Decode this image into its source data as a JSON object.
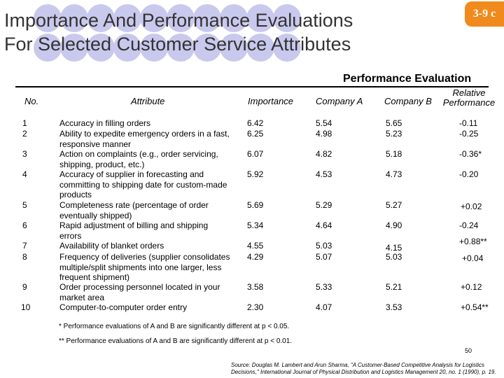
{
  "slide": {
    "title_lines": [
      "Importance And Performance Evaluations",
      "For Selected Customer Service Attributes"
    ],
    "number_tag": "3-9 c",
    "accent_color": "#f08a1c",
    "decor_color": "#c9c9ee"
  },
  "table": {
    "section_heading": "Performance Evaluation",
    "headers": {
      "no": "No.",
      "attribute": "Attribute",
      "importance": "Importance",
      "company_a": "Company A",
      "company_b": "Company B",
      "relative_line1": "Relative",
      "relative_line2": "Performance"
    },
    "rows": [
      {
        "no": "1",
        "attribute": "Accuracy in filling orders",
        "importance": "6.42",
        "a": "5.54",
        "b": "5.65",
        "rel": "-0.11"
      },
      {
        "no": "2",
        "attribute": "Ability to expedite emergency orders in a fast, responsive manner",
        "importance": "6.25",
        "a": "4.98",
        "b": "5.23",
        "rel": "-0.25"
      },
      {
        "no": "3",
        "attribute": "Action on complaints (e.g., order servicing, shipping, product, etc.)",
        "importance": "6.07",
        "a": "4.82",
        "b": "5.18",
        "rel": "-0.36*"
      },
      {
        "no": "4",
        "attribute": "Accuracy of supplier in forecasting and committing to shipping date for custom-made products",
        "importance": "5.92",
        "a": "4.53",
        "b": "4.73",
        "rel": "-0.20"
      },
      {
        "no": "5",
        "attribute": "Completeness rate (percentage of order eventually shipped)",
        "importance": "5.69",
        "a": "5.29",
        "b": "5.27",
        "rel": "+0.02"
      },
      {
        "no": "6",
        "attribute": "Rapid adjustment of billing and shipping errors",
        "importance": "5.34",
        "a": "4.64",
        "b": "4.90",
        "rel": "-0.24"
      },
      {
        "no": "7",
        "attribute": "Availability of blanket orders",
        "importance": "4.55",
        "a": "5.03",
        "b": "4.15",
        "rel": "+0.88**"
      },
      {
        "no": "8",
        "attribute": "Frequency of deliveries (supplier consolidates multiple/split shipments into one larger, less frequent shipment)",
        "importance": "4.29",
        "a": "5.07",
        "b": "5.03",
        "rel": "+0.04"
      },
      {
        "no": "9",
        "attribute": "Order processing personnel located in your market area",
        "importance": "3.58",
        "a": "5.33",
        "b": "5.21",
        "rel": "+0.12"
      },
      {
        "no": "10",
        "attribute": "Computer-to-computer order entry",
        "importance": "2.30",
        "a": "4.07",
        "b": "3.53",
        "rel": "+0.54**"
      }
    ]
  },
  "footnotes": {
    "single_star": "*  Performance evaluations of A and B are significantly different at p < 0.05.",
    "double_star": "**  Performance evaluations of A and B are significantly different at p < 0.01."
  },
  "page_number": "50",
  "source": {
    "line1": "Source: Douglas M. Lambert and Arun Sharma, \"A Customer-Based Competitive Analysis for Logistics",
    "line2": "Decisions,\" International Journal of Physical Distribution and Logistics Management 20, no. 1 (1990), p. 19."
  }
}
